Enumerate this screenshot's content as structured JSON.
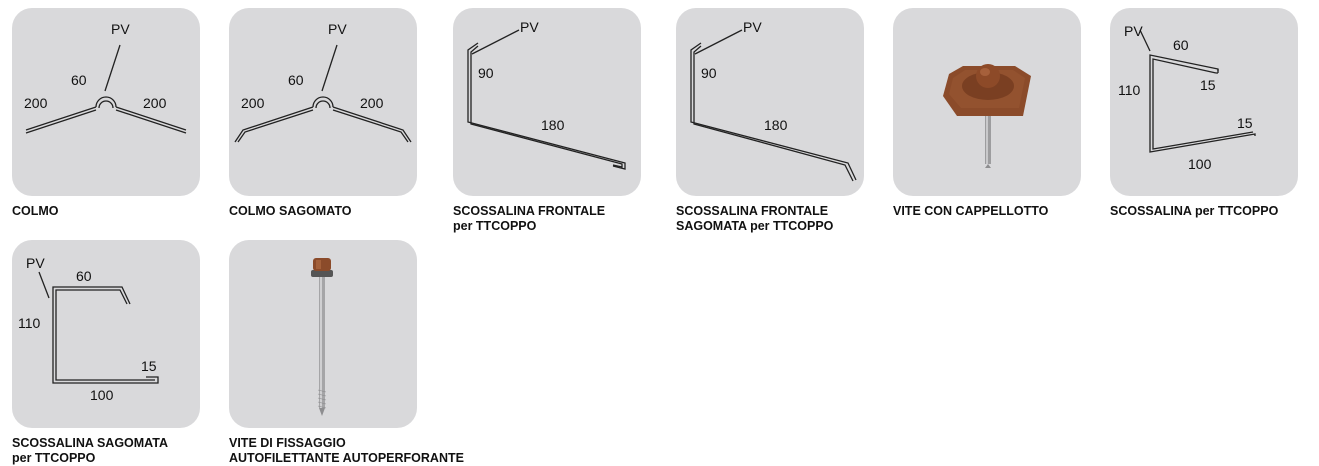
{
  "products": [
    {
      "id": "colmo",
      "title_lines": [
        "COLMO"
      ],
      "dimensions": {
        "pv": "PV",
        "a": "60",
        "left": "200",
        "right": "200"
      }
    },
    {
      "id": "colmo-sagomato",
      "title_lines": [
        "COLMO SAGOMATO"
      ],
      "dimensions": {
        "pv": "PV",
        "a": "60",
        "left": "200",
        "right": "200"
      }
    },
    {
      "id": "scossalina-frontale",
      "title_lines": [
        "SCOSSALINA FRONTALE",
        "per TTCOPPO"
      ],
      "dimensions": {
        "pv": "PV",
        "h": "90",
        "w": "180"
      }
    },
    {
      "id": "scossalina-frontale-sagomata",
      "title_lines": [
        "SCOSSALINA FRONTALE",
        "SAGOMATA per TTCOPPO"
      ],
      "dimensions": {
        "pv": "PV",
        "h": "90",
        "w": "180"
      }
    },
    {
      "id": "vite-con-cappellotto",
      "title_lines": [
        "VITE CON CAPPELLOTTO"
      ]
    },
    {
      "id": "scossalina",
      "title_lines": [
        "SCOSSALINA per TTCOPPO"
      ],
      "dimensions": {
        "pv": "PV",
        "top": "60",
        "h": "110",
        "top_hem": "15",
        "bottom_hem": "15",
        "bottom": "100"
      }
    },
    {
      "id": "scossalina-sagomata",
      "title_lines": [
        "SCOSSALINA SAGOMATA",
        "per TTCOPPO"
      ],
      "dimensions": {
        "pv": "PV",
        "top": "60",
        "h": "110",
        "hem": "15",
        "bottom": "100"
      }
    },
    {
      "id": "vite-fissaggio",
      "title_lines": [
        "VITE DI FISSAGGIO",
        "AUTOFILETTANTE AUTOPERFORANTE"
      ]
    }
  ],
  "colors": {
    "tile": "#d9d9db",
    "line": "#222222",
    "cap": "#8b4b2a",
    "screw": "#a9a9ab"
  }
}
